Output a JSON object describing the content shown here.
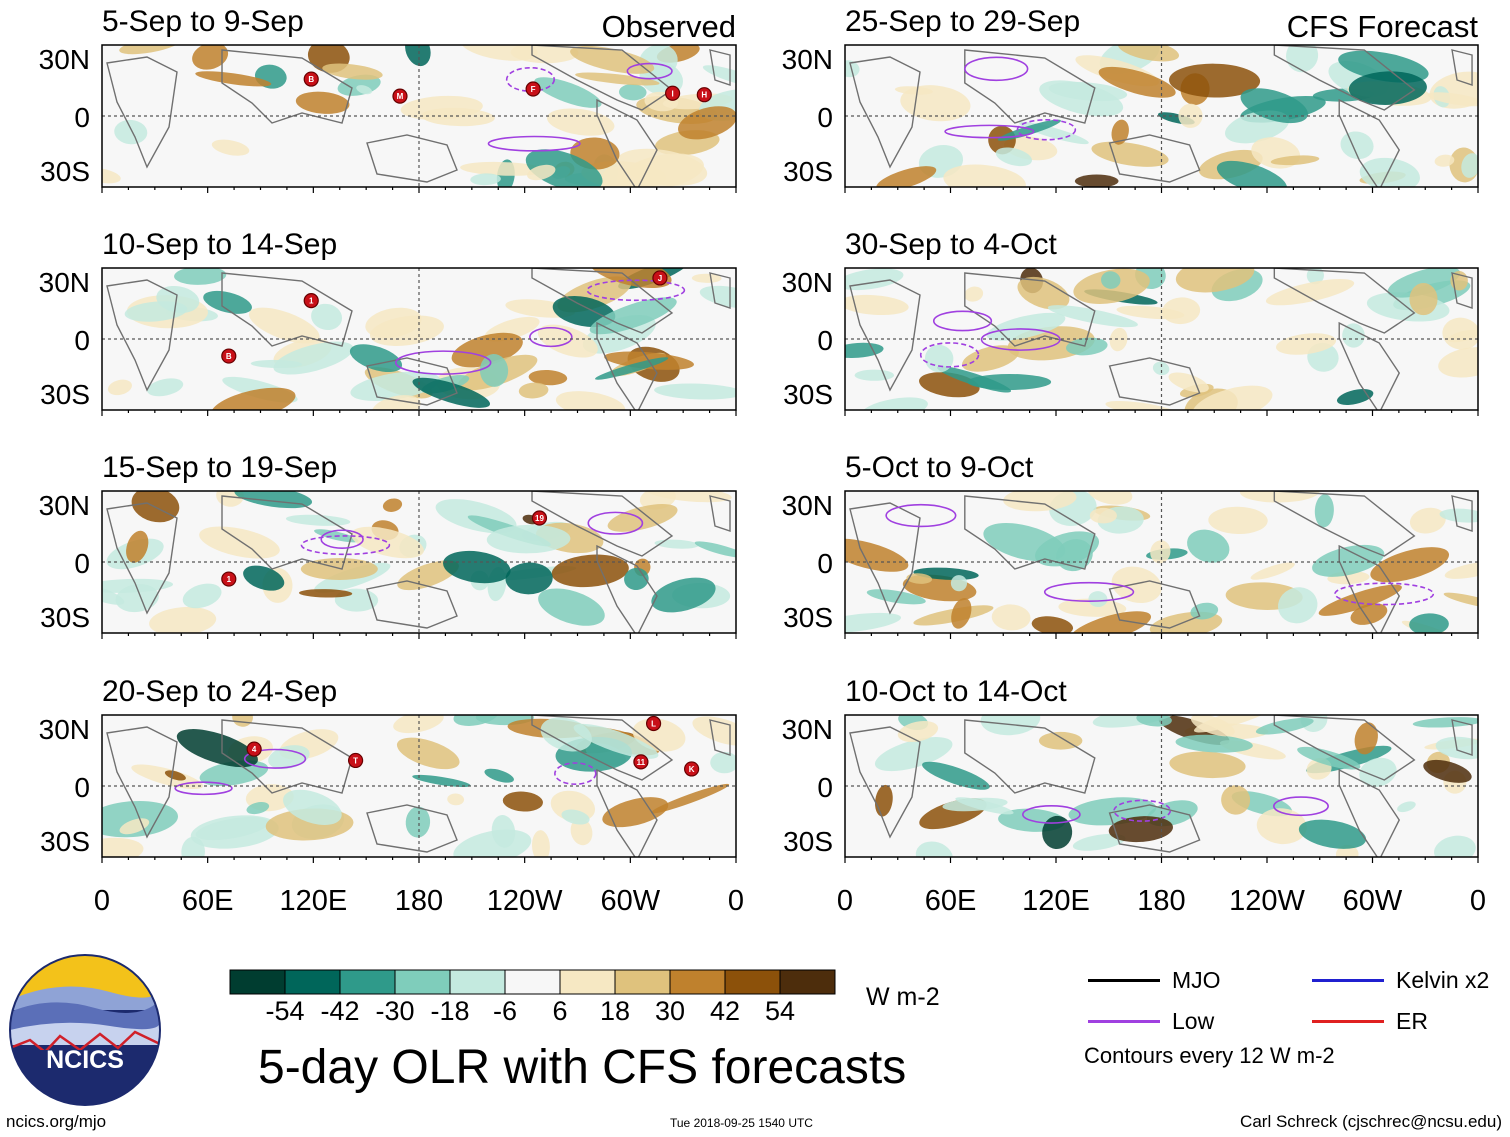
{
  "chart_data": {
    "type": "heatmap",
    "title": "5-day OLR with CFS forecasts",
    "column_labels": [
      "Observed",
      "CFS Forecast"
    ],
    "units": "W m-2",
    "lat_ticks": [
      "30N",
      "0",
      "30S"
    ],
    "lon_ticks": [
      "0",
      "60E",
      "120E",
      "180",
      "120W",
      "60W",
      "0"
    ],
    "colorbar": {
      "ticks": [
        "-54",
        "-42",
        "-30",
        "-18",
        "-6",
        "6",
        "18",
        "30",
        "42",
        "54"
      ],
      "colors": [
        "#003d30",
        "#00665a",
        "#2f9a8a",
        "#7fcdbb",
        "#c4eadf",
        "#f7f7f7",
        "#f6e8c3",
        "#dfc27d",
        "#bf812d",
        "#8c510a",
        "#4d2d0c"
      ]
    },
    "panels": [
      {
        "label": "5-Sep to 9-Sep",
        "column": "Observed"
      },
      {
        "label": "10-Sep to 14-Sep",
        "column": "Observed"
      },
      {
        "label": "15-Sep to 19-Sep",
        "column": "Observed"
      },
      {
        "label": "20-Sep to 24-Sep",
        "column": "Observed"
      },
      {
        "label": "25-Sep to 29-Sep",
        "column": "CFS Forecast"
      },
      {
        "label": "30-Sep to 4-Oct",
        "column": "CFS Forecast"
      },
      {
        "label": "5-Oct to 9-Oct",
        "column": "CFS Forecast"
      },
      {
        "label": "10-Oct to 14-Oct",
        "column": "CFS Forecast"
      }
    ],
    "storm_markers": [
      "B",
      "M",
      "F",
      "I",
      "H",
      "1",
      "B",
      "J",
      "1",
      "19",
      "4",
      "T",
      "L",
      "11",
      "K"
    ]
  },
  "legend": {
    "items": [
      {
        "label": "MJO",
        "color": "#000000"
      },
      {
        "label": "Kelvin x2",
        "color": "#2020d0"
      },
      {
        "label": "Low",
        "color": "#a040e0"
      },
      {
        "label": "ER",
        "color": "#e02020"
      }
    ],
    "note": "Contours every 12 W m-2"
  },
  "logo_text": "NCICS",
  "footer": {
    "url": "ncics.org/mjo",
    "timestamp": "Tue 2018-09-25 1540 UTC",
    "author": "Carl Schreck (cjschrec@ncsu.edu)"
  }
}
